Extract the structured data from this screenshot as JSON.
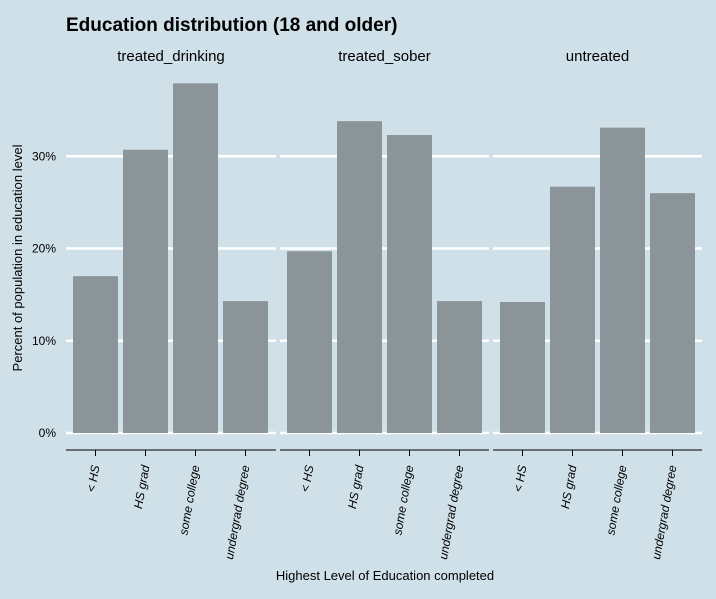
{
  "chart_data": {
    "type": "bar",
    "title": "Education distribution (18 and older)",
    "xlabel": "Highest Level of Education completed",
    "ylabel": "Percent of population in education level",
    "categories": [
      "< HS",
      "HS grad",
      "some college",
      "undergrad degree"
    ],
    "series": [
      {
        "name": "treated_drinking",
        "values": [
          17.0,
          30.7,
          37.9,
          14.3
        ]
      },
      {
        "name": "treated_sober",
        "values": [
          19.7,
          33.8,
          32.3,
          14.3
        ]
      },
      {
        "name": "untreated",
        "values": [
          14.2,
          26.7,
          33.1,
          26.0
        ]
      }
    ],
    "ylim": [
      0,
      40
    ],
    "yticks": [
      0,
      10,
      20,
      30
    ],
    "ytick_labels": [
      "0%",
      "10%",
      "20%",
      "30%"
    ],
    "grid": true,
    "bar_color": "#8a9499",
    "grid_color": "#ffffff",
    "background": "#cfe0e8"
  }
}
